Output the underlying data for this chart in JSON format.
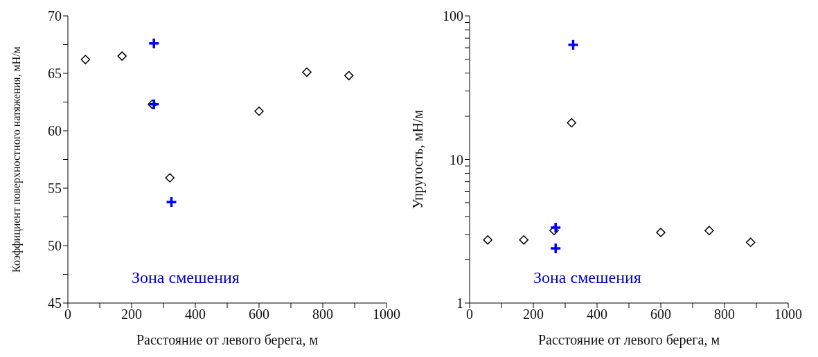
{
  "chart_data": [
    {
      "type": "scatter",
      "xlabel": "Расстояние от левого берега, м",
      "ylabel": "Коэффициент поверхностного натяжения, мН/м",
      "annotations": [
        "Зона смешения"
      ],
      "series": [
        {
          "color": "#000000",
          "marker": "diamond",
          "x": [
            55,
            170,
            265,
            320,
            600,
            750,
            882
          ],
          "values": [
            66.2,
            66.5,
            62.3,
            55.9,
            61.7,
            65.1,
            64.8
          ]
        },
        {
          "color": "#0000ff",
          "marker": "cross",
          "x": [
            270,
            270,
            325
          ],
          "values": [
            67.6,
            62.3,
            53.8
          ]
        }
      ],
      "xlim": [
        0,
        1000
      ],
      "xticks": [
        0,
        {
          "value": 100,
          "label": null
        },
        200,
        {
          "value": 300,
          "label": null
        },
        400,
        {
          "value": 500,
          "label": null
        },
        600,
        {
          "value": 700,
          "label": null
        },
        800,
        {
          "value": 900,
          "label": null
        },
        1000
      ],
      "ylim": [
        45,
        70
      ],
      "yticks": [
        45,
        {
          "value": 47.5,
          "label": null
        },
        50,
        {
          "value": 52.5,
          "label": null
        },
        55,
        {
          "value": 57.5,
          "label": null
        },
        60,
        {
          "value": 62.5,
          "label": null
        },
        65,
        {
          "value": 67.5,
          "label": null
        },
        70
      ],
      "grid": false,
      "legend": false
    },
    {
      "type": "scatter",
      "xlabel": "Расстояние от левого берега, м",
      "ylabel": "Упругость, мН/м",
      "annotations": [
        "Зона смешения"
      ],
      "log": "y",
      "series": [
        {
          "color": "#000000",
          "marker": "diamond",
          "x": [
            57,
            170,
            265,
            320,
            600,
            752,
            882
          ],
          "values": [
            2.75,
            2.75,
            3.2,
            18,
            3.1,
            3.2,
            2.65
          ]
        },
        {
          "color": "#0000ff",
          "marker": "cross",
          "x": [
            270,
            270,
            325
          ],
          "values": [
            3.35,
            2.4,
            63
          ]
        }
      ],
      "xlim": [
        0,
        1000
      ],
      "xticks": [
        0,
        {
          "value": 100,
          "label": null
        },
        200,
        {
          "value": 300,
          "label": null
        },
        400,
        {
          "value": 500,
          "label": null
        },
        600,
        {
          "value": 700,
          "label": null
        },
        800,
        {
          "value": 900,
          "label": null
        },
        1000
      ],
      "ylim": [
        1,
        100
      ],
      "yticks": [
        1,
        {
          "value": 2,
          "label": null
        },
        {
          "value": 3,
          "label": null
        },
        {
          "value": 4,
          "label": null
        },
        {
          "value": 5,
          "label": null
        },
        {
          "value": 6,
          "label": null
        },
        {
          "value": 7,
          "label": null
        },
        {
          "value": 8,
          "label": null
        },
        {
          "value": 9,
          "label": null
        },
        10,
        {
          "value": 20,
          "label": null
        },
        {
          "value": 30,
          "label": null
        },
        {
          "value": 40,
          "label": null
        },
        {
          "value": 50,
          "label": null
        },
        {
          "value": 60,
          "label": null
        },
        {
          "value": 70,
          "label": null
        },
        {
          "value": 80,
          "label": null
        },
        {
          "value": 90,
          "label": null
        },
        100
      ],
      "grid": false,
      "legend": false
    }
  ]
}
